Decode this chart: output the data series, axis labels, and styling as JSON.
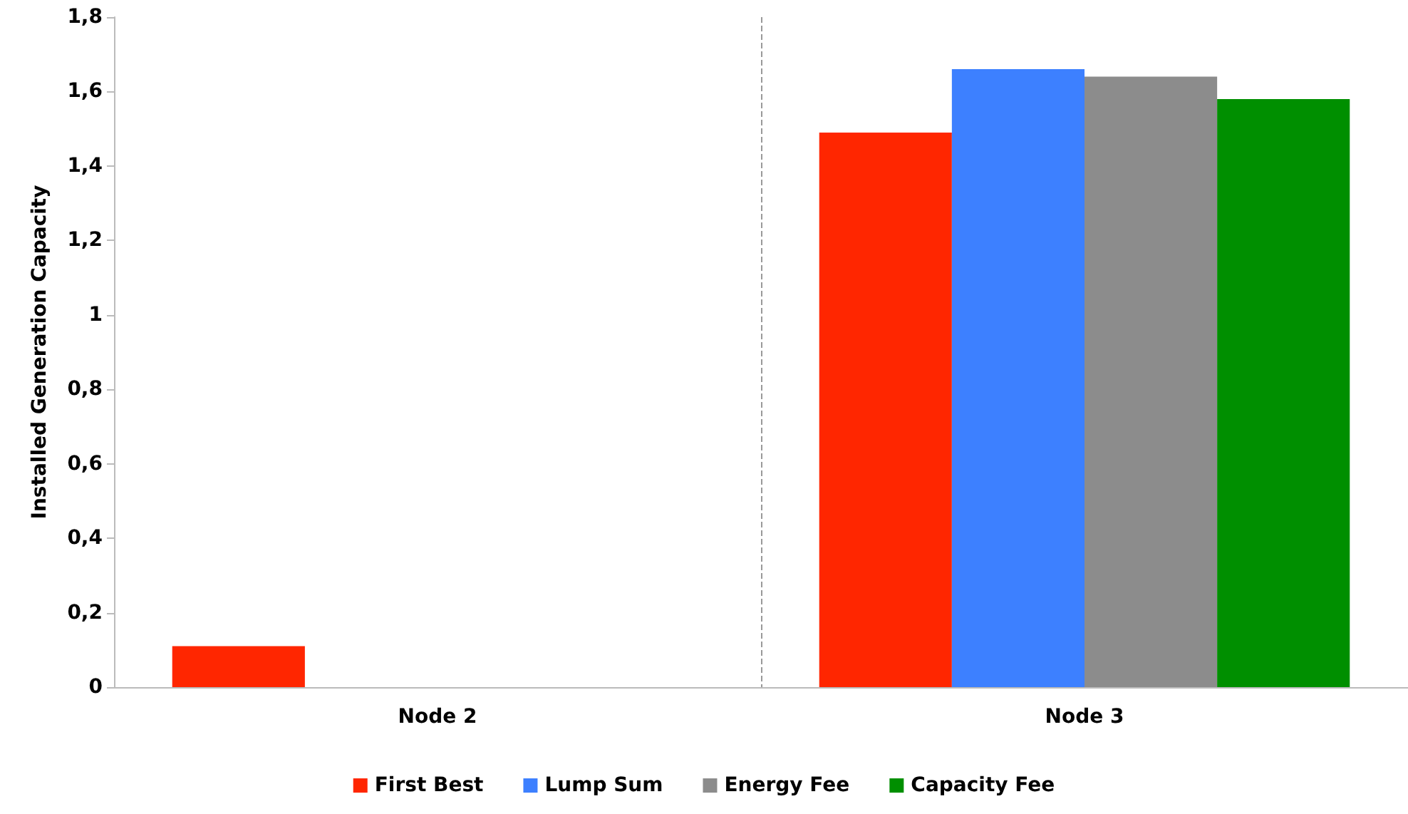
{
  "chart_data": {
    "type": "bar",
    "ylabel": "Installed Generation Capacity",
    "categories": [
      "Node 2",
      "Node 3"
    ],
    "series": [
      {
        "name": "First Best",
        "color": "#ff2600",
        "values": [
          0.11,
          1.49
        ]
      },
      {
        "name": "Lump Sum",
        "color": "#3d80ff",
        "values": [
          0,
          1.66
        ]
      },
      {
        "name": "Energy Fee",
        "color": "#8c8c8c",
        "values": [
          0,
          1.64
        ]
      },
      {
        "name": "Capacity Fee",
        "color": "#008f00",
        "values": [
          0,
          1.58
        ]
      }
    ],
    "ylim": [
      0,
      1.8
    ],
    "yticks": [
      {
        "value": 0,
        "label": "0"
      },
      {
        "value": 0.2,
        "label": "0,2"
      },
      {
        "value": 0.4,
        "label": "0,4"
      },
      {
        "value": 0.6,
        "label": "0,6"
      },
      {
        "value": 0.8,
        "label": "0,8"
      },
      {
        "value": 1,
        "label": "1"
      },
      {
        "value": 1.2,
        "label": "1,2"
      },
      {
        "value": 1.4,
        "label": "1,4"
      },
      {
        "value": 1.6,
        "label": "1,6"
      },
      {
        "value": 1.8,
        "label": "1,8"
      }
    ],
    "grid": "x",
    "legend": "bottom"
  }
}
